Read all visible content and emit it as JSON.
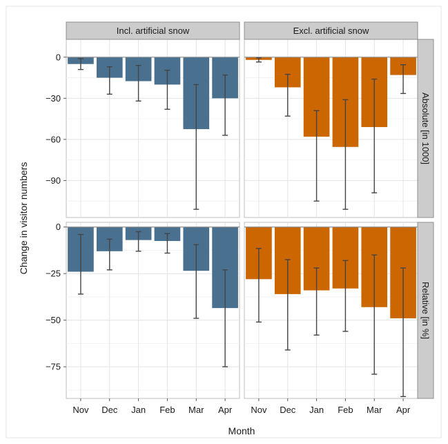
{
  "chart_data": {
    "type": "bar",
    "xlabel": "Month",
    "ylabel": "Change in visitor numbers",
    "categories": [
      "Nov",
      "Dec",
      "Jan",
      "Feb",
      "Mar",
      "Apr"
    ],
    "columns": [
      "Incl. artificial snow",
      "Excl. artificial snow"
    ],
    "rows": [
      "Absolute [in 1000]",
      "Relative [in %]"
    ],
    "colors": {
      "Incl. artificial snow": "#4a7090",
      "Excl. artificial snow": "#cc6600"
    },
    "facets": [
      {
        "row": "Absolute [in 1000]",
        "ylim": [
          -117,
          13
        ],
        "yticks": [
          0,
          -30,
          -60,
          -90
        ],
        "yticklabels": [
          "0",
          "−30",
          "−60",
          "−90"
        ],
        "panels": [
          {
            "column": "Incl. artificial snow",
            "values": [
              -5,
              -15,
              -17.5,
              -20,
              -52.5,
              -30
            ],
            "error_low": [
              -9,
              -27,
              -32,
              -38,
              -111,
              -57
            ],
            "error_high": [
              -1,
              -7,
              -6,
              -9.5,
              -20,
              -13
            ]
          },
          {
            "column": "Excl. artificial snow",
            "values": [
              -2,
              -22,
              -58,
              -65.5,
              -51,
              -13
            ],
            "error_low": [
              -3.5,
              -43,
              -105,
              -111,
              -99,
              -26.5
            ],
            "error_high": [
              -0.5,
              -12.5,
              -39,
              -31,
              -16,
              -5.5
            ]
          }
        ]
      },
      {
        "row": "Relative [in %]",
        "ylim": [
          -92,
          2.5
        ],
        "yticks": [
          0,
          -25,
          -50,
          -75
        ],
        "yticklabels": [
          "0",
          "−25",
          "−50",
          "−75"
        ],
        "panels": [
          {
            "column": "Incl. artificial snow",
            "values": [
              -24,
              -13,
              -7,
              -7.5,
              -23.5,
              -43.5
            ],
            "error_low": [
              -36,
              -23,
              -13,
              -14,
              -49,
              -75
            ],
            "error_high": [
              -4,
              -6.5,
              -2.5,
              -3.5,
              -9.5,
              -23
            ]
          },
          {
            "column": "Excl. artificial snow",
            "values": [
              -28,
              -36,
              -34,
              -33,
              -43,
              -49
            ],
            "error_low": [
              -51,
              -66,
              -58,
              -56,
              -79,
              -91
            ],
            "error_high": [
              -11.5,
              -17.5,
              -22,
              -18,
              -15,
              -22
            ]
          }
        ]
      }
    ]
  }
}
